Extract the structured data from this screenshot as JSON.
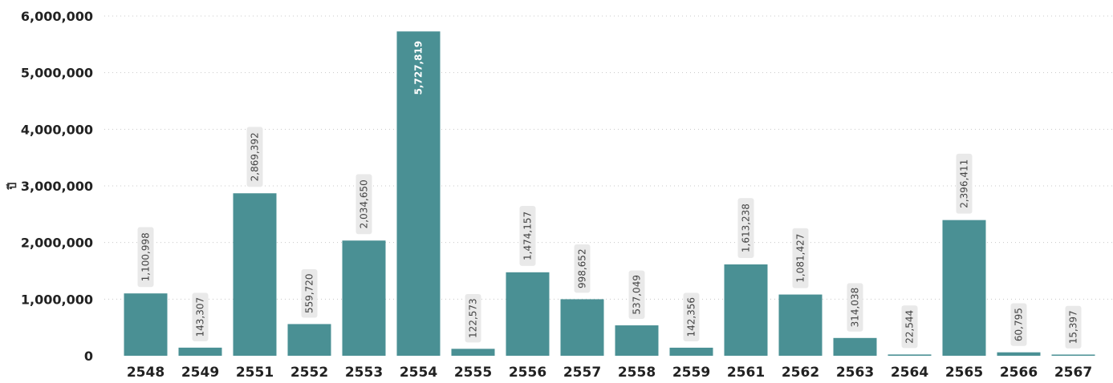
{
  "chart_data": {
    "type": "bar",
    "title": "",
    "xlabel": "",
    "ylabel": "ปี",
    "ylim": [
      0,
      6000000
    ],
    "y_ticks": [
      "0",
      "1,000,000",
      "2,000,000",
      "3,000,000",
      "4,000,000",
      "5,000,000",
      "6,000,000"
    ],
    "grid": "horizontal dotted",
    "categories": [
      "2548",
      "2549",
      "2551",
      "2552",
      "2553",
      "2554",
      "2555",
      "2556",
      "2557",
      "2558",
      "2559",
      "2561",
      "2562",
      "2563",
      "2564",
      "2565",
      "2566",
      "2567"
    ],
    "values": [
      1100998,
      143307,
      2869392,
      559720,
      2034650,
      5727819,
      122573,
      1474157,
      998652,
      537049,
      142356,
      1613238,
      1081427,
      314038,
      22544,
      2396411,
      60795,
      15397
    ],
    "value_labels": [
      "1,100,998",
      "143,307",
      "2,869,392",
      "559,720",
      "2,034,650",
      "5,727,819",
      "122,573",
      "1,474,157",
      "998,652",
      "537,049",
      "142,356",
      "1,613,238",
      "1,081,427",
      "314,038",
      "22,544",
      "2,396,411",
      "60,795",
      "15,397"
    ],
    "colors": {
      "bar": "#4a9094",
      "grid": "#c8c8c8",
      "label_bg": "#e9e9e9"
    }
  }
}
